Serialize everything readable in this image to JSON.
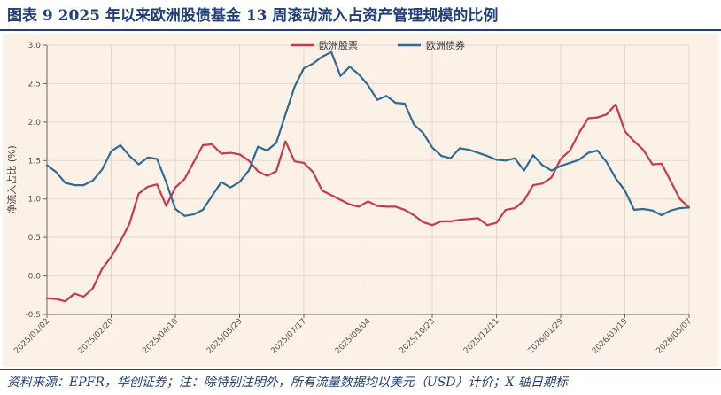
{
  "figure": {
    "title": "图表 9    2025 年以来欧洲股债基金 13 周滚动流入占资产管理规模的比例",
    "source": "资料来源：EPFR，华创证券；注：除特别注明外，所有流量数据均以美元（USD）计价；X 轴日期标"
  },
  "colors": {
    "stocks": "#c8384f",
    "bonds": "#2f6b93",
    "title": "#1f3f7a",
    "plot_bg": "#fcf1e6",
    "grid": "#e6d8c8"
  },
  "chart_data": {
    "type": "line",
    "title": "",
    "xlabel": "",
    "ylabel": "净流入占比 (%)",
    "ylim": [
      -0.5,
      3.0
    ],
    "yticks": [
      "-0.5",
      "0.0",
      "0.5",
      "1.0",
      "1.5",
      "2.0",
      "2.5",
      "3.0"
    ],
    "ytick_values": [
      -0.5,
      0.0,
      0.5,
      1.0,
      1.5,
      2.0,
      2.5,
      3.0
    ],
    "xticks": [
      "2025/01/02",
      "2025/02/20",
      "2025/04/10",
      "2025/05/29",
      "2025/07/17",
      "2025/09/04",
      "2025/10/23",
      "2025/12/11",
      "2026/01/29",
      "2026/03/19",
      "2026/05/07"
    ],
    "xtick_weeks": [
      0,
      7,
      14,
      21,
      28,
      35,
      42,
      49,
      56,
      63,
      70
    ],
    "x_unit": "weeks since 2025/01/02",
    "grid": true,
    "legend_position": "top-center",
    "series": [
      {
        "name": "欧洲股票",
        "color": "#c8384f",
        "x": [
          0,
          1,
          2,
          3,
          4,
          5,
          6,
          7,
          8,
          9,
          10,
          11,
          12,
          13,
          14,
          15,
          16,
          17,
          18,
          19,
          20,
          21,
          22,
          23,
          24,
          25,
          26,
          27,
          28,
          29,
          30,
          31,
          32,
          33,
          34,
          35,
          36,
          37,
          38,
          39,
          40,
          41,
          42,
          43,
          44,
          45,
          46,
          47,
          48,
          49,
          50,
          51,
          52,
          53,
          54,
          55,
          56,
          57,
          58,
          59,
          60,
          61,
          62,
          63,
          64,
          65,
          66,
          67,
          68,
          69,
          70
        ],
        "values": [
          -0.29,
          -0.3,
          -0.33,
          -0.23,
          -0.27,
          -0.16,
          0.09,
          0.25,
          0.45,
          0.68,
          1.07,
          1.16,
          1.19,
          0.91,
          1.15,
          1.26,
          1.48,
          1.7,
          1.71,
          1.59,
          1.6,
          1.58,
          1.5,
          1.36,
          1.3,
          1.36,
          1.75,
          1.49,
          1.47,
          1.35,
          1.11,
          1.05,
          0.99,
          0.93,
          0.9,
          0.97,
          0.91,
          0.9,
          0.9,
          0.86,
          0.79,
          0.7,
          0.66,
          0.71,
          0.71,
          0.73,
          0.74,
          0.75,
          0.66,
          0.69,
          0.86,
          0.88,
          0.98,
          1.18,
          1.2,
          1.28,
          1.52,
          1.63,
          1.86,
          2.05,
          2.06,
          2.1,
          2.23,
          1.88,
          1.75,
          1.64,
          1.45,
          1.46,
          1.23,
          1.0,
          0.89
        ]
      },
      {
        "name": "欧洲债券",
        "color": "#2f6b93",
        "x": [
          0,
          1,
          2,
          3,
          4,
          5,
          6,
          7,
          8,
          9,
          10,
          11,
          12,
          13,
          14,
          15,
          16,
          17,
          18,
          19,
          20,
          21,
          22,
          23,
          24,
          25,
          26,
          27,
          28,
          29,
          30,
          31,
          32,
          33,
          34,
          35,
          36,
          37,
          38,
          39,
          40,
          41,
          42,
          43,
          44,
          45,
          46,
          47,
          48,
          49,
          50,
          51,
          52,
          53,
          54,
          55,
          56,
          57,
          58,
          59,
          60,
          61,
          62,
          63,
          64,
          65,
          66,
          67,
          68,
          69,
          70
        ],
        "values": [
          1.44,
          1.35,
          1.21,
          1.18,
          1.18,
          1.24,
          1.38,
          1.62,
          1.7,
          1.56,
          1.45,
          1.54,
          1.52,
          1.22,
          0.87,
          0.78,
          0.8,
          0.86,
          1.04,
          1.22,
          1.15,
          1.22,
          1.37,
          1.68,
          1.63,
          1.73,
          2.1,
          2.46,
          2.7,
          2.76,
          2.85,
          2.91,
          2.6,
          2.72,
          2.62,
          2.48,
          2.29,
          2.34,
          2.25,
          2.24,
          1.97,
          1.86,
          1.67,
          1.56,
          1.53,
          1.66,
          1.64,
          1.6,
          1.56,
          1.51,
          1.5,
          1.53,
          1.37,
          1.57,
          1.44,
          1.37,
          1.43,
          1.47,
          1.51,
          1.6,
          1.63,
          1.48,
          1.27,
          1.11,
          0.86,
          0.87,
          0.85,
          0.79,
          0.85,
          0.88,
          0.89
        ]
      }
    ]
  }
}
